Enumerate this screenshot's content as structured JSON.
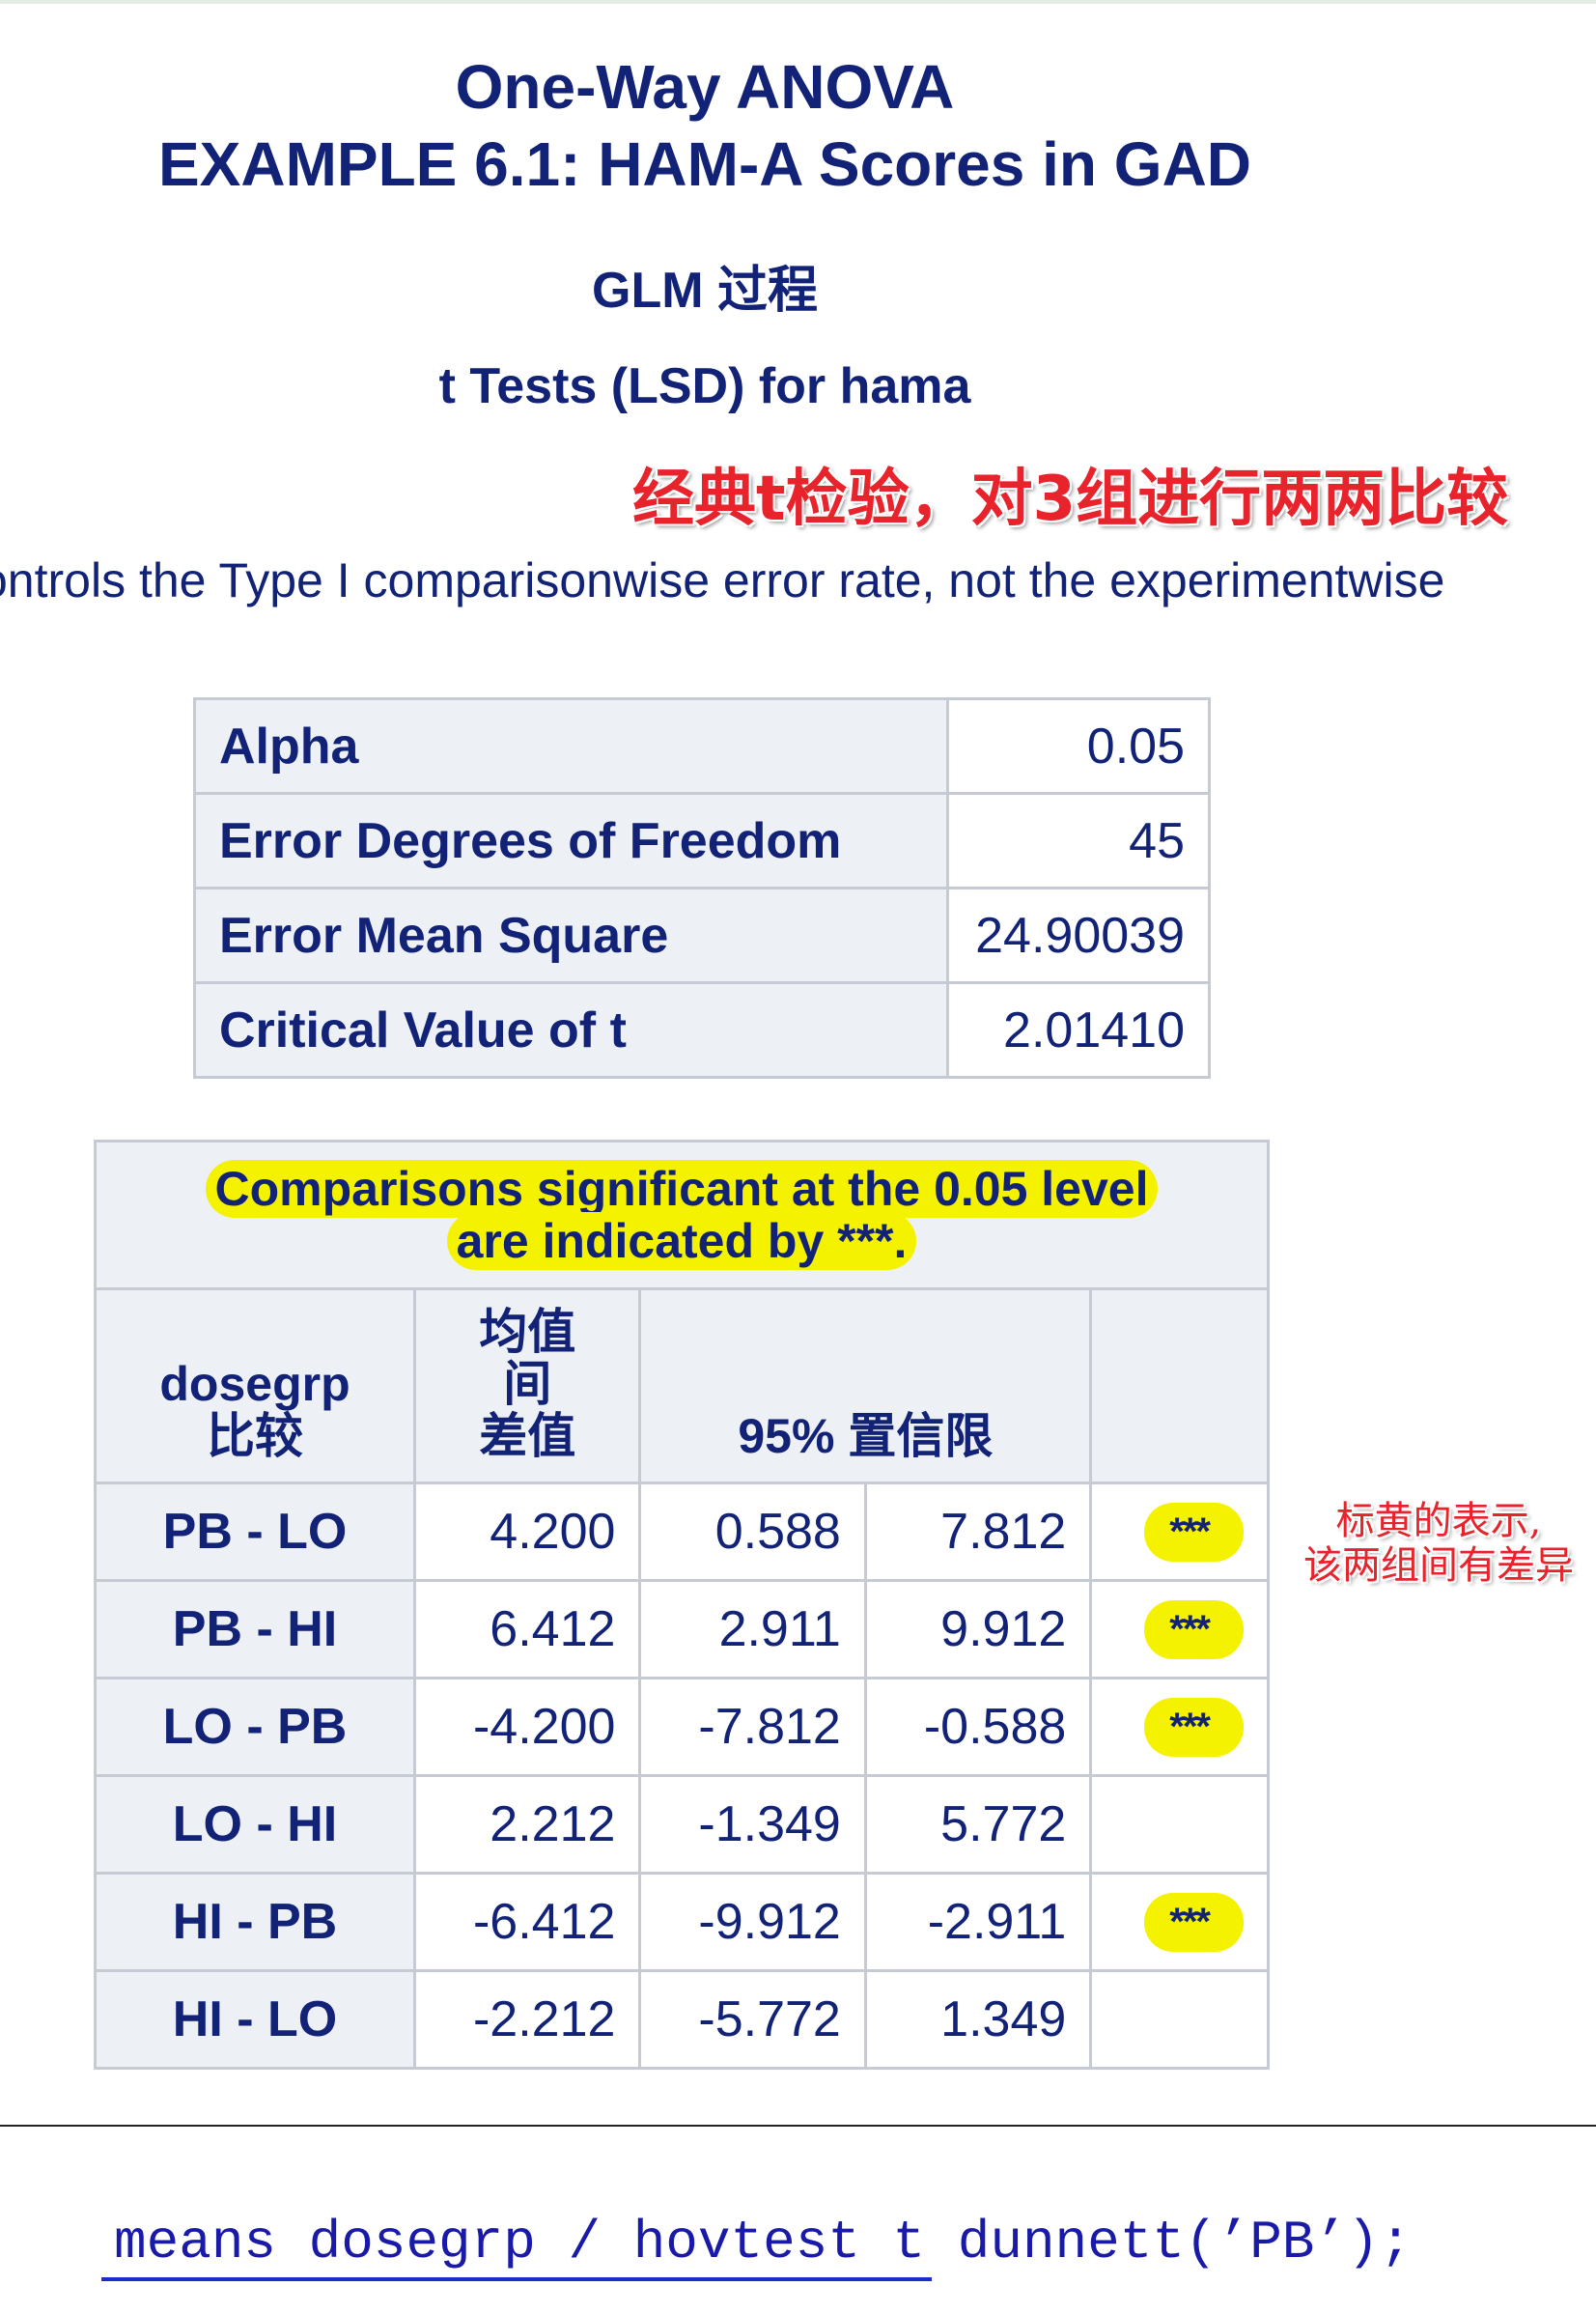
{
  "header": {
    "title_line1": "One-Way ANOVA",
    "title_line2": "EXAMPLE 6.1: HAM-A Scores in GAD",
    "procedure": "GLM 过程",
    "test_title": "t Tests (LSD) for hama"
  },
  "annotations": {
    "classic_t_note": "经典t检验，对3组进行两两比较",
    "highlight_note_line1": "标黄的表示,",
    "highlight_note_line2": "该两组间有差异"
  },
  "controls_text": "ontrols the Type I comparisonwise error rate, not the experimentwise",
  "stats": [
    {
      "label": "Alpha",
      "value": "0.05"
    },
    {
      "label": "Error Degrees of Freedom",
      "value": "45"
    },
    {
      "label": "Error Mean Square",
      "value": "24.90039"
    },
    {
      "label": "Critical Value of t",
      "value": "2.01410"
    }
  ],
  "comparisons": {
    "caption_line1": "Comparisons significant at the 0.05 level",
    "caption_line2": "are indicated by ***.",
    "head_group_line1": "dosegrp",
    "head_group_line2": "比较",
    "head_diff_line1": "均值",
    "head_diff_line2": "间",
    "head_diff_line3": "差值",
    "head_ci": "95% 置信限",
    "rows": [
      {
        "group": "PB - LO",
        "diff": "4.200",
        "lower": "0.588",
        "upper": "7.812",
        "sig": "***"
      },
      {
        "group": "PB - HI",
        "diff": "6.412",
        "lower": "2.911",
        "upper": "9.912",
        "sig": "***"
      },
      {
        "group": "LO - PB",
        "diff": "-4.200",
        "lower": "-7.812",
        "upper": "-0.588",
        "sig": "***"
      },
      {
        "group": "LO - HI",
        "diff": "2.212",
        "lower": "-1.349",
        "upper": "5.772",
        "sig": ""
      },
      {
        "group": "HI - PB",
        "diff": "-6.412",
        "lower": "-9.912",
        "upper": "-2.911",
        "sig": "***"
      },
      {
        "group": "HI - LO",
        "diff": "-2.212",
        "lower": "-5.772",
        "upper": "1.349",
        "sig": ""
      }
    ]
  },
  "code": {
    "line": "means dosegrp / hovtest t dunnett(’PB’);"
  },
  "colors": {
    "title": "#112277",
    "highlight": "#f5f200",
    "annotation_red": "#e8232c",
    "table_header_bg": "#edf1f5",
    "code_blue": "#1a1aa8"
  }
}
